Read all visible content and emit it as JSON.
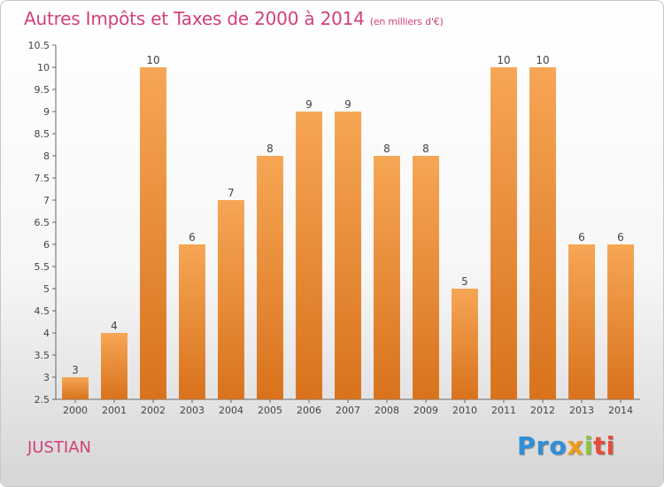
{
  "title": "Autres Impôts et Taxes de 2000 à 2014",
  "subtitle": "(en milliers d'€)",
  "commune": "JUSTIAN",
  "logo": {
    "p1": "Pro",
    "p2": "x",
    "p3": "i",
    "p4": "ti",
    "full": "Proxiti"
  },
  "colors": {
    "bar_top": "#f6a655",
    "bar_bottom": "#d9721c",
    "title": "#d2407a"
  },
  "chart_data": {
    "type": "bar",
    "title": "Autres Impôts et Taxes de 2000 à 2014",
    "categories": [
      "2000",
      "2001",
      "2002",
      "2003",
      "2004",
      "2005",
      "2006",
      "2007",
      "2008",
      "2009",
      "2010",
      "2011",
      "2012",
      "2013",
      "2014"
    ],
    "values": [
      3,
      4,
      10,
      6,
      7,
      8,
      9,
      9,
      8,
      8,
      5,
      10,
      10,
      6,
      6
    ],
    "ylim": [
      2.5,
      10.5
    ],
    "yticks": [
      2.5,
      3,
      3.5,
      4,
      4.5,
      5,
      5.5,
      6,
      6.5,
      7,
      7.5,
      8,
      8.5,
      9,
      9.5,
      10,
      10.5
    ],
    "grid": false,
    "legend": "none"
  }
}
